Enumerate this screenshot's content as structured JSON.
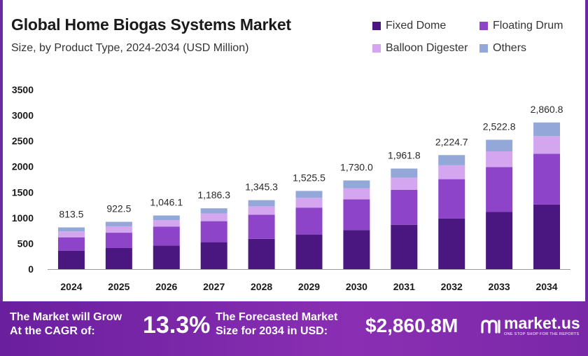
{
  "title": "Global Home Biogas Systems Market",
  "subtitle": "Size, by Product Type, 2024-2034 (USD Million)",
  "colors": {
    "fixed_dome": "#4a1780",
    "floating_drum": "#8e44c8",
    "balloon_digester": "#d4a6f0",
    "others": "#93a8d8",
    "banner": "#7b2aa8"
  },
  "legend": [
    {
      "label": "Fixed Dome",
      "color": "#4a1780"
    },
    {
      "label": "Floating Drum",
      "color": "#8e44c8"
    },
    {
      "label": "Balloon Digester",
      "color": "#d4a6f0"
    },
    {
      "label": "Others",
      "color": "#93a8d8"
    }
  ],
  "chart_data": {
    "type": "bar",
    "stacked": true,
    "title": "Global Home Biogas Systems Market",
    "subtitle": "Size, by Product Type, 2024-2034 (USD Million)",
    "categories": [
      "2024",
      "2025",
      "2026",
      "2027",
      "2028",
      "2029",
      "2030",
      "2031",
      "2032",
      "2033",
      "2034"
    ],
    "totals": [
      813.5,
      922.5,
      1046.1,
      1186.3,
      1345.3,
      1525.5,
      1730.0,
      1961.8,
      2224.7,
      2522.8,
      2860.8
    ],
    "total_labels": [
      "813.5",
      "922.5",
      "1,046.1",
      "1,186.3",
      "1,345.3",
      "1,525.5",
      "1,730.0",
      "1,961.8",
      "2,224.7",
      "2,522.8",
      "2,860.8"
    ],
    "series": [
      {
        "name": "Fixed Dome",
        "color": "#4a1780",
        "values": [
          360,
          410,
          460,
          525,
          590,
          675,
          760,
          865,
          985,
          1115,
          1260
        ]
      },
      {
        "name": "Floating Drum",
        "color": "#8e44c8",
        "values": [
          260,
          300,
          370,
          410,
          470,
          525,
          600,
          680,
          770,
          875,
          990
        ]
      },
      {
        "name": "Balloon Digester",
        "color": "#d4a6f0",
        "values": [
          115,
          125,
          126,
          151,
          165,
          190,
          215,
          240,
          270,
          307,
          345
        ]
      },
      {
        "name": "Others",
        "color": "#93a8d8",
        "values": [
          78.5,
          87.5,
          90.1,
          100.3,
          120.3,
          135.5,
          155.0,
          176.8,
          199.7,
          225.8,
          265.8
        ]
      }
    ],
    "ylim": [
      0,
      3500
    ],
    "yticks": [
      0,
      500,
      1000,
      1500,
      2000,
      2500,
      3000,
      3500
    ],
    "xlabel": "",
    "ylabel": "",
    "grid": false,
    "legend_position": "top-right"
  },
  "banner": {
    "cagr_line1": "The Market will Grow",
    "cagr_line2": "At the CAGR of:",
    "cagr_value": "13.3%",
    "forecast_line1": "The Forecasted Market",
    "forecast_line2": "Size for 2034 in USD:",
    "forecast_value": "$2,860.8M",
    "logo_text": "market.us",
    "logo_tagline": "ONE STOP SHOP FOR THE REPORTS"
  }
}
